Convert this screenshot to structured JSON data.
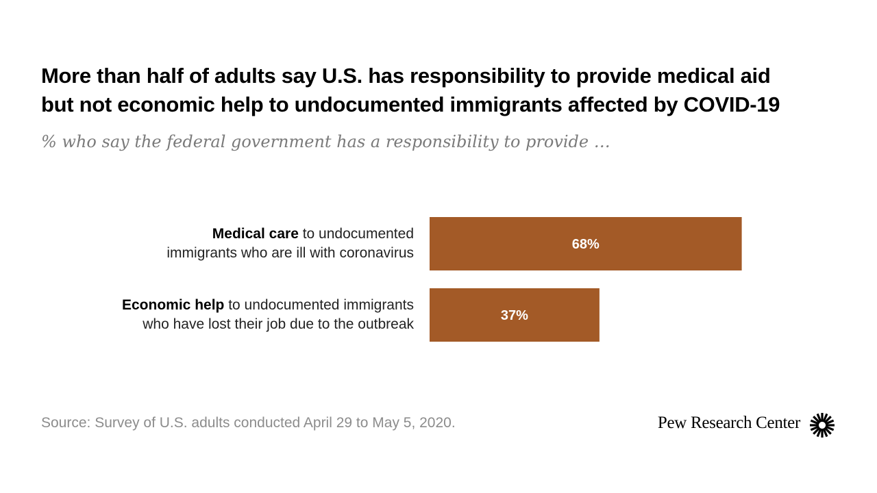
{
  "title_lines": [
    "More than half of adults say U.S. has responsibility to provide medical aid",
    "but not economic help to undocumented immigrants affected by COVID-19"
  ],
  "subtitle": "% who say the federal government has a responsibility to provide …",
  "chart_data": {
    "type": "bar",
    "orientation": "horizontal",
    "categories": [
      {
        "bold": "Medical care",
        "line1_rest": " to undocumented",
        "line2": "immigrants who are ill with coronavirus"
      },
      {
        "bold": "Economic help",
        "line1_rest": " to undocumented immigrants",
        "line2": "who have lost their job due to the outbreak"
      }
    ],
    "values": [
      68,
      37
    ],
    "value_labels": [
      "68%",
      "37%"
    ],
    "xlim": [
      0,
      100
    ],
    "bar_color": "#a35a27",
    "label_color": "#ffffff",
    "grid": false
  },
  "source": "Source: Survey of U.S. adults conducted April 29 to May 5, 2020.",
  "brand": "Pew Research Center",
  "logo_icon": "pew-sunburst-icon"
}
